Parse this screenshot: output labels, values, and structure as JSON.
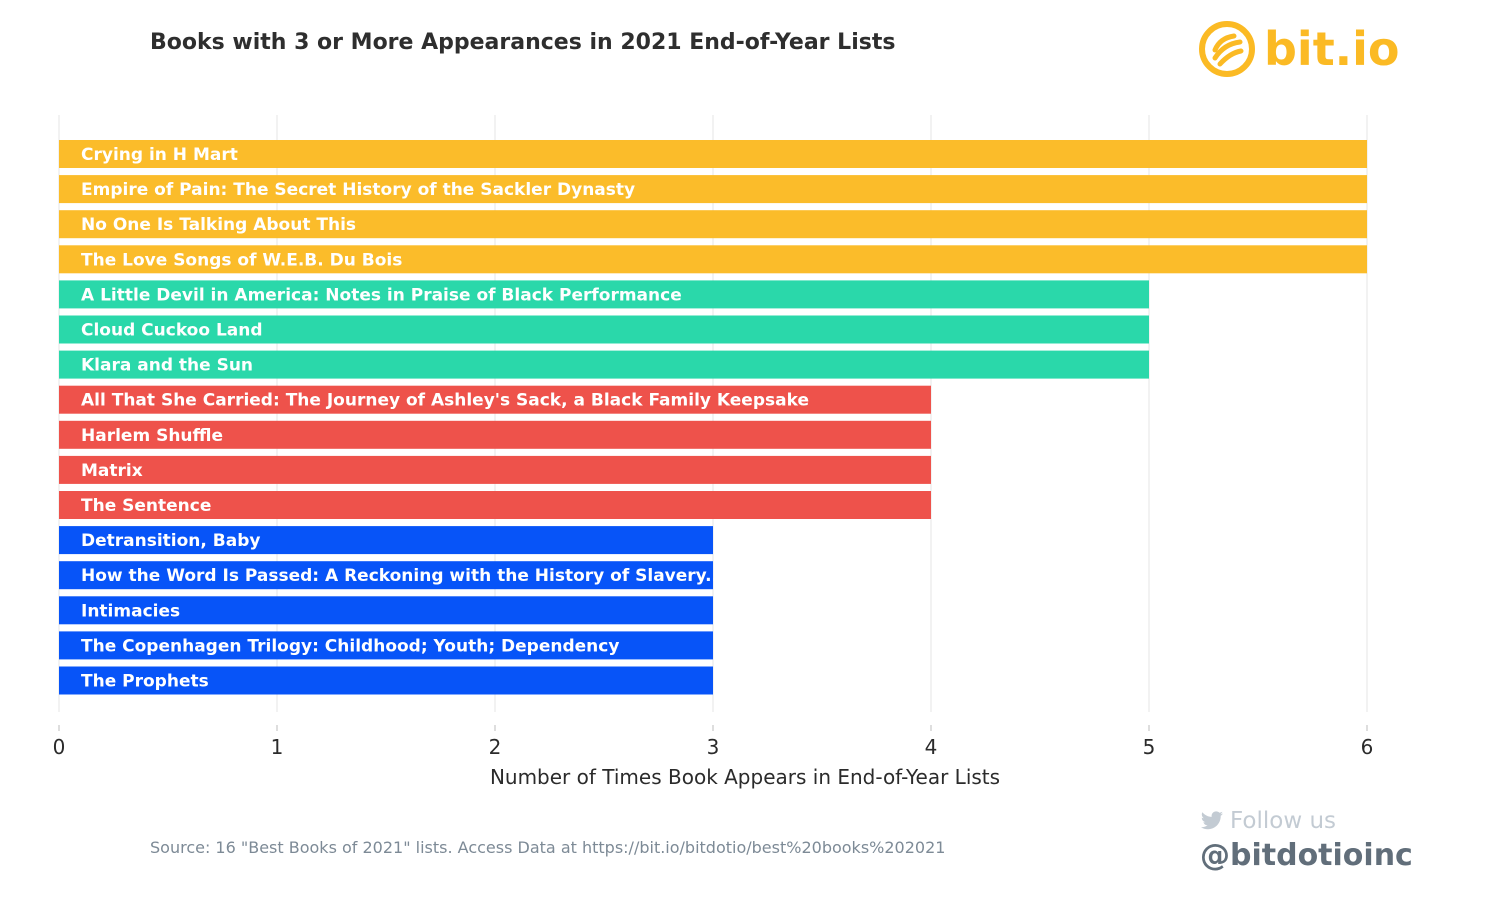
{
  "header": {
    "title": "Books with 3 or More Appearances in 2021 End-of-Year Lists",
    "logo_text": "bit.io"
  },
  "chart_data": {
    "type": "bar",
    "orientation": "horizontal",
    "title": "Books with 3 or More Appearances in 2021 End-of-Year Lists",
    "xlabel": "Number of Times Book Appears in End-of-Year Lists",
    "ylabel": "",
    "xlim": [
      0,
      6
    ],
    "xticks": [
      0,
      1,
      2,
      3,
      4,
      5,
      6
    ],
    "grid": true,
    "categories": [
      "Crying in H Mart",
      "Empire of Pain: The Secret History of the Sackler Dynasty",
      "No One Is Talking About This",
      "The Love Songs of W.E.B. Du Bois",
      "A Little Devil in America: Notes in Praise of Black Performance",
      "Cloud Cuckoo Land",
      "Klara and the Sun",
      "All That She Carried: The Journey of Ashley's Sack, a Black Family Keepsake",
      "Harlem Shuffle",
      "Matrix",
      "The Sentence",
      "Detransition, Baby",
      "How the Word Is Passed: A Reckoning with the History of Slavery...",
      "Intimacies",
      "The Copenhagen Trilogy: Childhood; Youth; Dependency",
      "The Prophets"
    ],
    "values": [
      6,
      6,
      6,
      6,
      5,
      5,
      5,
      4,
      4,
      4,
      4,
      3,
      3,
      3,
      3,
      3
    ],
    "colors_by_value": {
      "6": "#fbbc2a",
      "5": "#2ad8aa",
      "4": "#ee524b",
      "3": "#0754f8"
    },
    "label_color": "#ffffff"
  },
  "footer": {
    "source": "Source: 16 \"Best Books of 2021\" lists. Access Data at https://bit.io/bitdotio/best%20books%202021",
    "follow": "Follow us",
    "handle": "@bitdotioinc"
  }
}
